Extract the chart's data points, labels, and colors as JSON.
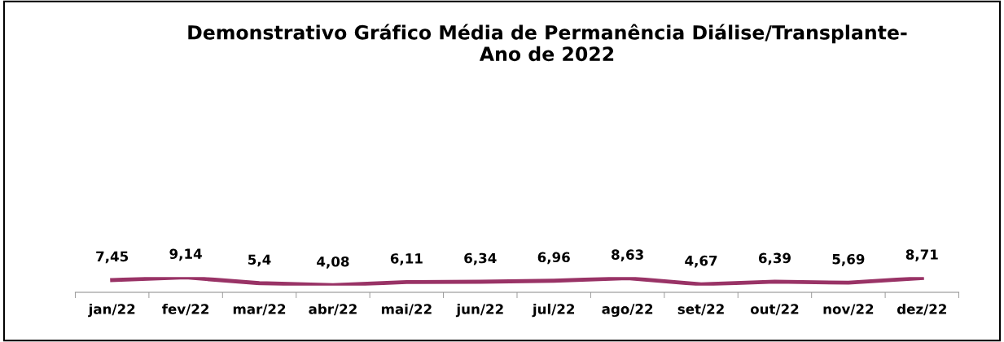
{
  "chart_data": {
    "type": "line",
    "title": "Demonstrativo Gráfico Média de Permanência Diálise/Transplante-\nAno de 2022",
    "categories": [
      "jan/22",
      "fev/22",
      "mar/22",
      "abr/22",
      "mai/22",
      "jun/22",
      "jul/22",
      "ago/22",
      "set/22",
      "out/22",
      "nov/22",
      "dez/22"
    ],
    "series": [
      {
        "color": "#993366",
        "values": [
          7.45,
          9.14,
          5.4,
          4.08,
          6.11,
          6.34,
          6.96,
          8.63,
          4.67,
          6.39,
          5.69,
          8.71
        ],
        "value_labels": [
          "7,45",
          "9,14",
          "5,4",
          "4,08",
          "6,11",
          "6,34",
          "6,96",
          "8,63",
          "4,67",
          "6,39",
          "5,69",
          "8,71"
        ]
      }
    ],
    "tick_labels": "x",
    "grid": false,
    "legend": false,
    "marker": "none",
    "line_style": "solid"
  }
}
